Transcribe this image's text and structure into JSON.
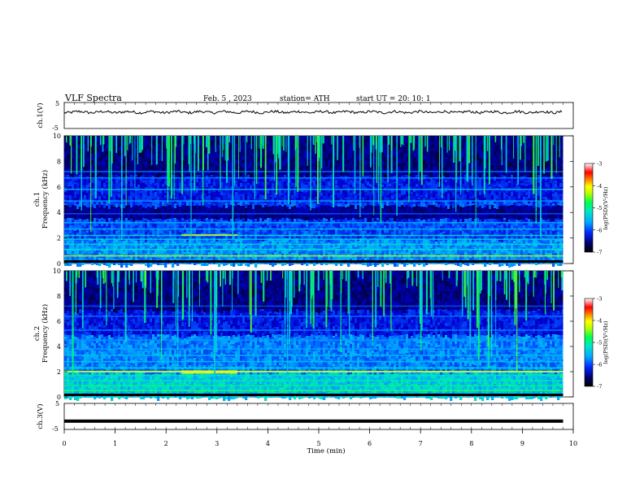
{
  "header": {
    "title": "VLF  Spectra",
    "date": "Feb. 5  , 2023",
    "station": "station= ATH",
    "start_ut": "start  UT  =    20: 10: 1"
  },
  "chart_data": [
    {
      "type": "line",
      "panel": "ch1-waveform",
      "ylabel": "ch.1(V)",
      "ylim": [
        -5,
        5
      ],
      "ytick_labels": [
        "5",
        "-5"
      ],
      "xlim": [
        0,
        10
      ],
      "note_values": "noisy trace around ~1.2 V with amplitude ~±0.6 V",
      "x_end": 9.8
    },
    {
      "type": "heatmap",
      "panel": "ch1-spectrogram",
      "ylabel": "ch.1\nFrequency (kHz)",
      "ylabel_line1": "ch.1",
      "ylabel_line2": "Frequency (kHz)",
      "ylim": [
        0,
        10
      ],
      "ytick_labels": [
        "0",
        "2",
        "4",
        "6",
        "8",
        "10"
      ],
      "xlim": [
        0,
        10
      ],
      "x_end": 9.8,
      "colorbar": {
        "label": "log(PSD)(V²/Hz)",
        "range": [
          -7,
          -3
        ],
        "tick_labels": [
          "-3",
          "-4",
          "-5",
          "-6",
          "-7"
        ]
      }
    },
    {
      "type": "heatmap",
      "panel": "ch2-spectrogram",
      "ylabel_line1": "ch.2",
      "ylabel_line2": "Frequency (kHz)",
      "ylim": [
        0,
        10
      ],
      "ytick_labels": [
        "0",
        "2",
        "4",
        "6",
        "8",
        "10"
      ],
      "xlim": [
        0,
        10
      ],
      "x_end": 9.8,
      "colorbar": {
        "label": "log(PSD)(V²/Hz)",
        "range": [
          -7,
          -3
        ],
        "tick_labels": [
          "-3",
          "-4",
          "-5",
          "-6",
          "-7"
        ]
      }
    },
    {
      "type": "line",
      "panel": "ch3-waveform",
      "ylabel": "ch.3(V)",
      "ylim": [
        -5,
        5
      ],
      "ytick_labels": [
        "5",
        "-5"
      ],
      "xlim": [
        0,
        10
      ],
      "x_end": 9.8,
      "constant_value": -1.8
    }
  ],
  "xaxis": {
    "label": "Time  (min)",
    "ticks": [
      "0",
      "1",
      "2",
      "3",
      "4",
      "5",
      "6",
      "7",
      "8",
      "9",
      "10"
    ]
  },
  "colors": {
    "colormap": [
      "#000000",
      "#000060",
      "#0000c8",
      "#0050ff",
      "#00b4ff",
      "#00e6c8",
      "#00ff64",
      "#c8ff00",
      "#ffff00",
      "#ff8000",
      "#ff0000",
      "#ffffff"
    ]
  }
}
